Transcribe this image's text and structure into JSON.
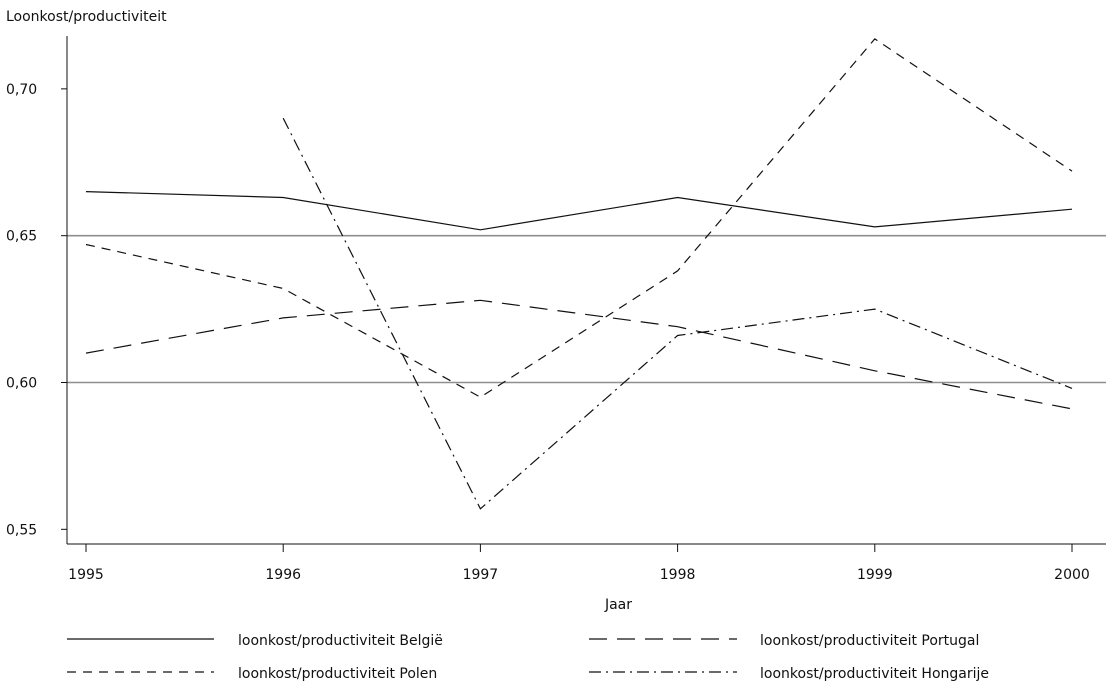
{
  "chart_data": {
    "type": "line",
    "title": "",
    "xlabel": "Jaar",
    "ylabel": "Loonkost/productiviteit",
    "x": [
      1995,
      1996,
      1997,
      1998,
      1999,
      2000
    ],
    "x_tick_labels": [
      "1995",
      "1996",
      "1997",
      "1998",
      "1999",
      "2000"
    ],
    "y_ticks": [
      0.55,
      0.6,
      0.65,
      0.7
    ],
    "y_tick_labels": [
      "0,55",
      "0,60",
      "0,65",
      "0,70"
    ],
    "ylim": [
      0.545,
      0.718
    ],
    "reference_lines": [
      0.6,
      0.65
    ],
    "legend_position": "bottom",
    "series": [
      {
        "name": "loonkost/productiviteit België",
        "dash": "solid",
        "values": [
          0.665,
          0.663,
          0.652,
          0.663,
          0.653,
          0.659
        ]
      },
      {
        "name": "loonkost/productiviteit Portugal",
        "dash": "long-dash",
        "values": [
          0.61,
          0.622,
          0.628,
          0.619,
          0.604,
          0.591
        ]
      },
      {
        "name": "loonkost/productiviteit Polen",
        "dash": "short-dash",
        "values": [
          0.647,
          0.632,
          0.595,
          0.638,
          0.717,
          0.672
        ]
      },
      {
        "name": "loonkost/productiviteit Hongarije",
        "dash": "dash-dot",
        "values": [
          null,
          0.69,
          0.557,
          0.616,
          0.625,
          0.598
        ]
      }
    ]
  }
}
